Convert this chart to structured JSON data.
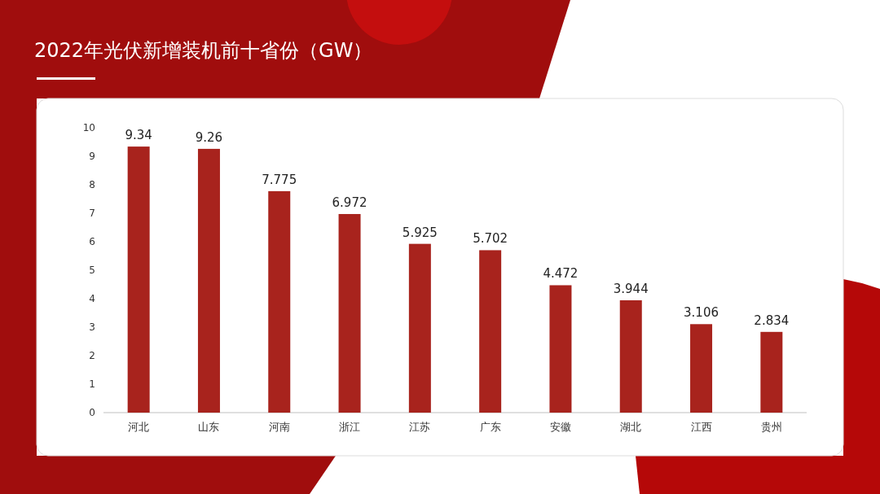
{
  "chart_data": {
    "type": "bar",
    "title": "2022年光伏新增装机前十省份（GW）",
    "categories": [
      "河北",
      "山东",
      "河南",
      "浙江",
      "江苏",
      "广东",
      "安徽",
      "湖北",
      "江西",
      "贵州"
    ],
    "values": [
      9.34,
      9.26,
      7.775,
      6.972,
      5.925,
      5.702,
      4.472,
      3.944,
      3.106,
      2.834
    ],
    "color": "#a8231d",
    "ylim": [
      0,
      10
    ],
    "yticks": [
      0,
      1,
      2,
      3,
      4,
      5,
      6,
      7,
      8,
      9,
      10
    ],
    "data_labels": true
  }
}
